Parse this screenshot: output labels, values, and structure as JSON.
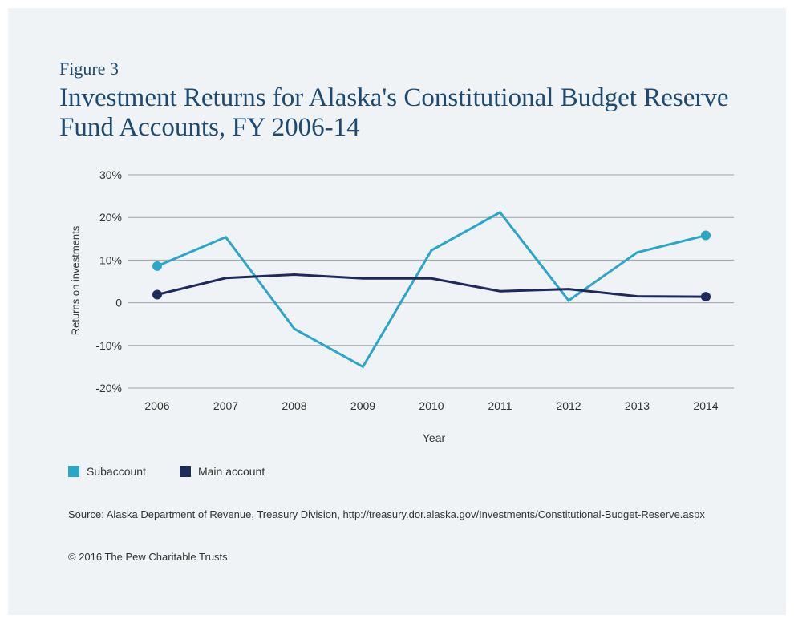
{
  "figure_label": "Figure 3",
  "chart_data": {
    "type": "line",
    "title": "Investment Returns for Alaska's Constitutional Budget Reserve Fund Accounts, FY 2006-14",
    "xlabel": "Year",
    "ylabel": "Returns on investments",
    "x": [
      "2006",
      "2007",
      "2008",
      "2009",
      "2010",
      "2011",
      "2012",
      "2013",
      "2014"
    ],
    "ylim": [
      -20,
      30
    ],
    "yticks": [
      30,
      20,
      10,
      0,
      -10,
      -20
    ],
    "ytick_labels": [
      "30%",
      "20%",
      "10%",
      "0",
      "-10%",
      "-20%"
    ],
    "grid": true,
    "legend_position": "bottom-left",
    "series": [
      {
        "name": "Subaccount",
        "color": "#2aa6c9",
        "values": [
          8.6,
          15.4,
          -6.1,
          -15.0,
          12.3,
          21.2,
          0.5,
          11.8,
          15.8
        ]
      },
      {
        "name": "Main account",
        "color": "#1f2a5c",
        "values": [
          1.9,
          5.8,
          6.6,
          5.7,
          5.7,
          2.7,
          3.2,
          1.5,
          1.4
        ]
      }
    ]
  },
  "source": "Source: Alaska Department of Revenue, Treasury Division, http://treasury.dor.alaska.gov/Investments/Constitutional-Budget-Reserve.aspx",
  "copyright": "© 2016 The Pew Charitable Trusts"
}
